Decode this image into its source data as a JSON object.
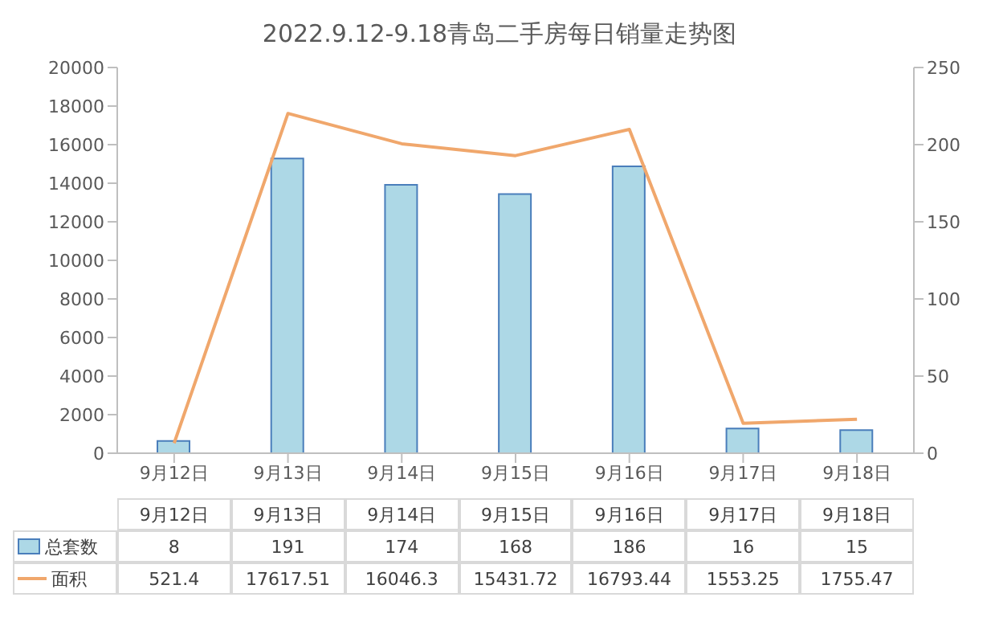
{
  "chart_data": {
    "type": "bar",
    "title": "2022.9.12-9.18青岛二手房每日销量走势图",
    "categories": [
      "9月12日",
      "9月13日",
      "9月14日",
      "9月15日",
      "9月16日",
      "9月17日",
      "9月18日"
    ],
    "series": [
      {
        "name": "总套数",
        "axis": "y2",
        "color": "#add8e6",
        "values": [
          8,
          191,
          174,
          168,
          186,
          16,
          15
        ]
      },
      {
        "name": "面积",
        "type": "line",
        "color": "#f0a76c",
        "values": [
          521.4,
          17617.51,
          16046.3,
          15431.72,
          16793.44,
          1553.25,
          1755.47
        ]
      }
    ],
    "ylim": [
      0,
      20000
    ],
    "yticks": [
      0,
      2000,
      4000,
      6000,
      8000,
      10000,
      12000,
      14000,
      16000,
      18000,
      20000
    ],
    "y2lim": [
      0,
      250
    ],
    "y2ticks": [
      0,
      50,
      100,
      150,
      200,
      250
    ],
    "data_labels": true,
    "legend": "bottom"
  }
}
